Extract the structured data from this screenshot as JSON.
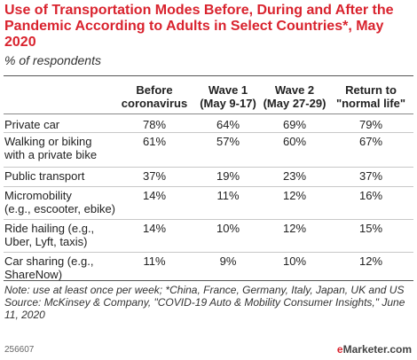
{
  "title": "Use of Transportation Modes Before, During and After the Pandemic According to Adults in Select Countries*, May 2020",
  "subtitle": "% of respondents",
  "columns": [
    {
      "line1": "Before",
      "line2": "coronavirus"
    },
    {
      "line1": "Wave 1",
      "line2": "(May 9-17)"
    },
    {
      "line1": "Wave 2",
      "line2": "(May 27-29)"
    },
    {
      "line1": "Return to",
      "line2": "\"normal life\""
    }
  ],
  "rows": [
    {
      "label1": "Private car",
      "label2": "",
      "values": [
        "78%",
        "64%",
        "69%",
        "79%"
      ]
    },
    {
      "label1": "Walking or biking",
      "label2": "with a private bike",
      "values": [
        "61%",
        "57%",
        "60%",
        "67%"
      ]
    },
    {
      "label1": "Public transport",
      "label2": "",
      "values": [
        "37%",
        "19%",
        "23%",
        "37%"
      ]
    },
    {
      "label1": "Micromobility",
      "label2": "(e.g., escooter, ebike)",
      "values": [
        "14%",
        "11%",
        "12%",
        "16%"
      ]
    },
    {
      "label1": "Ride hailing (e.g.,",
      "label2": "Uber, Lyft, taxis)",
      "values": [
        "14%",
        "10%",
        "12%",
        "15%"
      ]
    },
    {
      "label1": "Car sharing (e.g.,",
      "label2": "ShareNow)",
      "values": [
        "11%",
        "9%",
        "10%",
        "12%"
      ]
    }
  ],
  "note": "Note: use at least once per week; *China, France, Germany, Italy, Japan, UK and US",
  "source": "Source: McKinsey & Company, \"COVID-19 Auto & Mobility Consumer Insights,\" June 11, 2020",
  "footer_id": "256607",
  "brand": {
    "prefix": "e",
    "name": "Marketer",
    "suffix": ".com"
  },
  "chart_data": {
    "type": "table",
    "title": "Use of Transportation Modes Before, During and After the Pandemic According to Adults in Select Countries*, May 2020",
    "subtitle": "% of respondents",
    "columns": [
      "Before coronavirus",
      "Wave 1 (May 9-17)",
      "Wave 2 (May 27-29)",
      "Return to \"normal life\""
    ],
    "categories": [
      "Private car",
      "Walking or biking with a private bike",
      "Public transport",
      "Micromobility (e.g., escooter, ebike)",
      "Ride hailing (e.g., Uber, Lyft, taxis)",
      "Car sharing (e.g., ShareNow)"
    ],
    "series": [
      {
        "name": "Before coronavirus",
        "values": [
          78,
          61,
          37,
          14,
          14,
          11
        ]
      },
      {
        "name": "Wave 1 (May 9-17)",
        "values": [
          64,
          57,
          19,
          11,
          10,
          9
        ]
      },
      {
        "name": "Wave 2 (May 27-29)",
        "values": [
          69,
          60,
          23,
          12,
          12,
          10
        ]
      },
      {
        "name": "Return to \"normal life\"",
        "values": [
          79,
          67,
          37,
          16,
          15,
          12
        ]
      }
    ]
  }
}
